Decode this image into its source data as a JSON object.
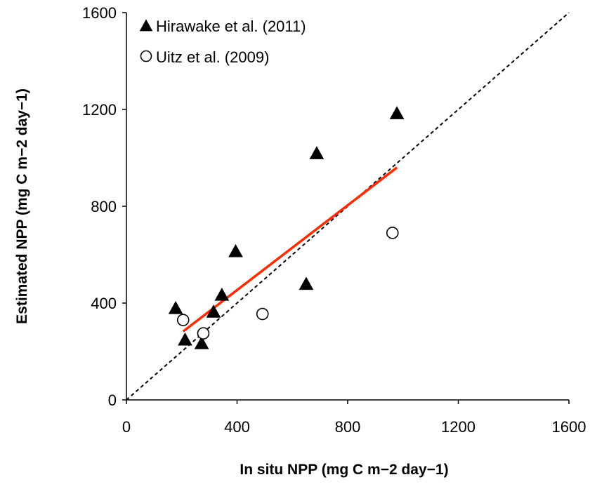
{
  "chart_data": {
    "type": "scatter",
    "title": "",
    "xlabel": "In situ NPP (mg C m−2 day−1)",
    "ylabel": "Estimated NPP (mg C m−2 day−1)",
    "xlim": [
      0,
      1600
    ],
    "ylim": [
      0,
      1600
    ],
    "xticks": [
      "0",
      "400",
      "800",
      "1200",
      "1600"
    ],
    "yticks": [
      "0",
      "400",
      "800",
      "1200",
      "1600"
    ],
    "grid": false,
    "legend_position": "top-left",
    "series": [
      {
        "name": "Hirawake et al. (2011)",
        "marker": "filled-triangle",
        "color": "#000000",
        "points": [
          {
            "x": 178,
            "y": 375
          },
          {
            "x": 212,
            "y": 245
          },
          {
            "x": 272,
            "y": 230
          },
          {
            "x": 315,
            "y": 360
          },
          {
            "x": 345,
            "y": 430
          },
          {
            "x": 395,
            "y": 610
          },
          {
            "x": 650,
            "y": 475
          },
          {
            "x": 688,
            "y": 1015
          },
          {
            "x": 978,
            "y": 1180
          }
        ]
      },
      {
        "name": "Uitz et al. (2009)",
        "marker": "open-circle",
        "color": "#000000",
        "points": [
          {
            "x": 205,
            "y": 330
          },
          {
            "x": 278,
            "y": 275
          },
          {
            "x": 492,
            "y": 355
          },
          {
            "x": 962,
            "y": 690
          }
        ]
      }
    ],
    "lines": [
      {
        "kind": "one-to-one",
        "style": "dashed",
        "color": "#000000",
        "x": [
          0,
          1600
        ],
        "y": [
          0,
          1600
        ]
      },
      {
        "kind": "regression",
        "style": "solid",
        "color": "#ff2a00",
        "x": [
          205,
          978
        ],
        "y": [
          283,
          960
        ]
      }
    ]
  }
}
